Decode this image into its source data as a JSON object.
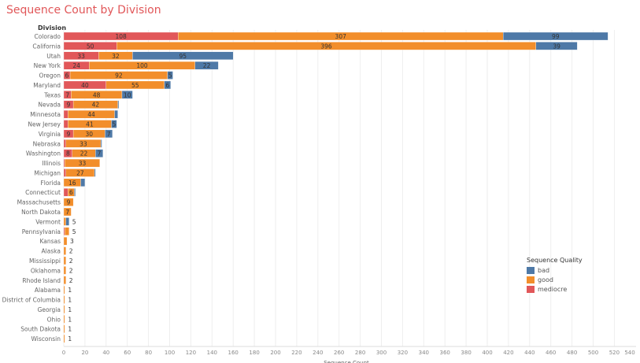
{
  "title": "Sequence Count by Division",
  "chart_data": {
    "type": "bar",
    "orientation": "horizontal-stacked",
    "title": "Sequence Count by Division",
    "row_header": "Division",
    "xlabel": "Sequence Count",
    "xlim": [
      0,
      540
    ],
    "xticks": [
      0,
      20,
      40,
      60,
      80,
      100,
      120,
      140,
      160,
      180,
      200,
      220,
      240,
      260,
      280,
      300,
      320,
      340,
      360,
      380,
      400,
      420,
      440,
      460,
      480,
      500,
      520,
      540
    ],
    "grid": true,
    "legend": {
      "title": "Sequence Quality",
      "placement": "right"
    },
    "categories": [
      "Colorado",
      "California",
      "Utah",
      "New York",
      "Oregon",
      "Maryland",
      "Texas",
      "Nevada",
      "Minnesota",
      "New Jersey",
      "Virginia",
      "Nebraska",
      "Washington",
      "Illinois",
      "Michigan",
      "Florida",
      "Connecticut",
      "Massachusetts",
      "North Dakota",
      "Vermont",
      "Pennsylvania",
      "Kansas",
      "Alaska",
      "Mississippi",
      "Oklahoma",
      "Rhode Island",
      "Alabama",
      "District of Columbia",
      "Georgia",
      "Ohio",
      "South Dakota",
      "Wisconsin"
    ],
    "series": [
      {
        "name": "mediocre",
        "color": "#e15759",
        "values": [
          108,
          50,
          33,
          24,
          6,
          40,
          7,
          9,
          4,
          4,
          9,
          2,
          8,
          1,
          2,
          0,
          4,
          0,
          0,
          0,
          1,
          0,
          0,
          0,
          0,
          0,
          0,
          0,
          0,
          0,
          0,
          0
        ]
      },
      {
        "name": "good",
        "color": "#f28e2b",
        "values": [
          307,
          396,
          32,
          100,
          92,
          55,
          48,
          42,
          44,
          41,
          30,
          33,
          22,
          33,
          27,
          16,
          6,
          9,
          7,
          2,
          4,
          3,
          2,
          2,
          2,
          2,
          1,
          1,
          1,
          1,
          1,
          1
        ]
      },
      {
        "name": "bad",
        "color": "#4e79a7",
        "values": [
          99,
          39,
          95,
          22,
          5,
          6,
          10,
          1,
          3,
          5,
          7,
          1,
          7,
          0,
          1,
          4,
          1,
          0,
          0,
          3,
          0,
          0,
          0,
          0,
          0,
          0,
          0,
          0,
          0,
          0,
          0,
          0
        ]
      }
    ]
  }
}
